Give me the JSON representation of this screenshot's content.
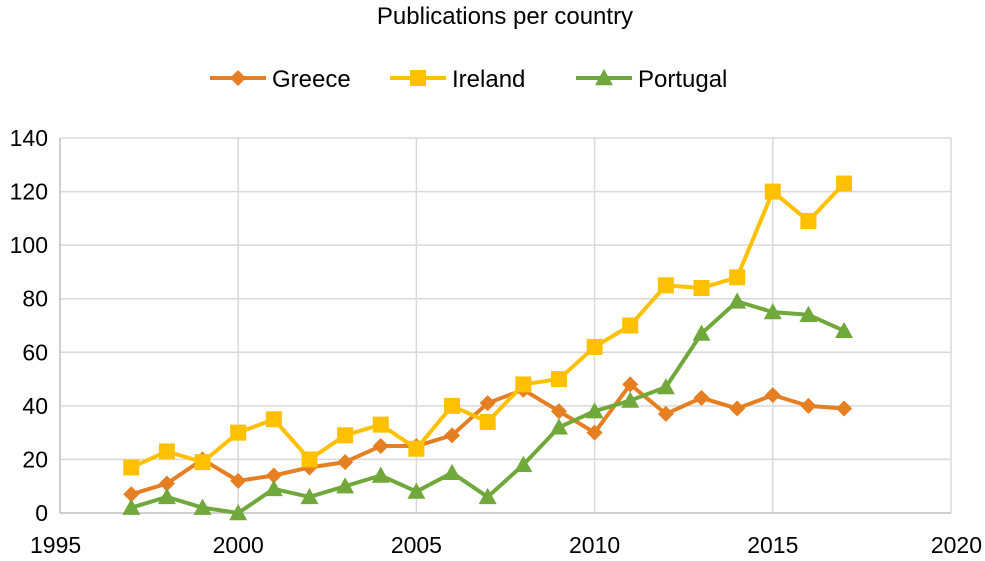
{
  "chart_data": {
    "type": "line",
    "title": "Publications per country",
    "xlabel": "",
    "ylabel": "",
    "xlim": [
      1995,
      2020
    ],
    "ylim": [
      0,
      140
    ],
    "x_ticks": [
      1995,
      2000,
      2005,
      2010,
      2015,
      2020
    ],
    "y_ticks": [
      0,
      20,
      40,
      60,
      80,
      100,
      120,
      140
    ],
    "grid": true,
    "legend_position": "top",
    "x": [
      1997,
      1998,
      1999,
      2000,
      2001,
      2002,
      2003,
      2004,
      2005,
      2006,
      2007,
      2008,
      2009,
      2010,
      2011,
      2012,
      2013,
      2014,
      2015,
      2016,
      2017
    ],
    "series": [
      {
        "name": "Greece",
        "color": "#E67E22",
        "marker": "diamond",
        "values": [
          7,
          11,
          20,
          12,
          14,
          17,
          19,
          25,
          25,
          29,
          41,
          46,
          38,
          30,
          48,
          37,
          43,
          39,
          44,
          40,
          39
        ]
      },
      {
        "name": "Ireland",
        "color": "#FFC000",
        "marker": "square",
        "values": [
          17,
          23,
          19,
          30,
          35,
          20,
          29,
          33,
          24,
          40,
          34,
          48,
          50,
          62,
          70,
          85,
          84,
          88,
          120,
          109,
          123
        ]
      },
      {
        "name": "Portugal",
        "color": "#70A83B",
        "marker": "triangle",
        "values": [
          2,
          6,
          2,
          0,
          9,
          6,
          10,
          14,
          8,
          15,
          6,
          18,
          32,
          38,
          42,
          47,
          67,
          79,
          75,
          74,
          68
        ]
      }
    ]
  }
}
